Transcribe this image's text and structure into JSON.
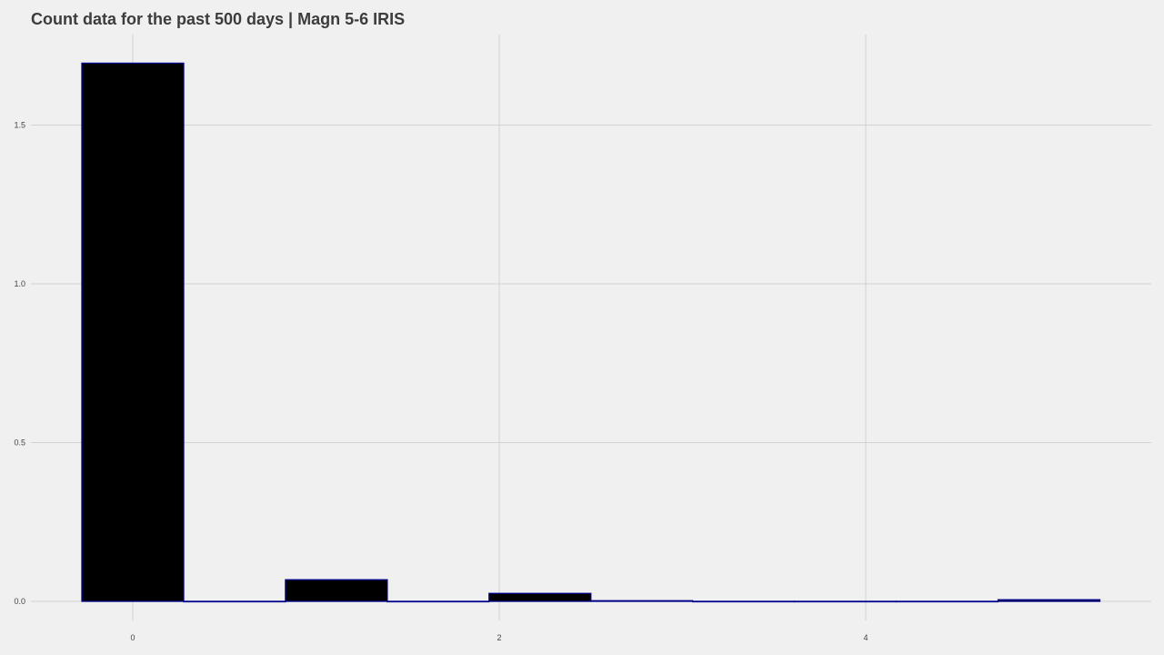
{
  "chart_data": {
    "type": "bar",
    "title": "Count data for the past 500 days | Magn 5-6 IRIS",
    "xlabel": "",
    "ylabel": "",
    "x": [
      0,
      0.5556,
      1.1111,
      1.6667,
      2.2222,
      2.7778,
      3.3333,
      3.8889,
      4.4444,
      5.0
    ],
    "values": [
      1.695,
      0.0,
      0.068,
      0.0,
      0.025,
      0.002,
      0.0,
      0.0,
      0.0,
      0.005
    ],
    "bar_width": 0.5556,
    "xlim": [
      -0.55,
      5.55
    ],
    "ylim": [
      0,
      1.78
    ],
    "x_ticks": [
      0,
      2,
      4
    ],
    "x_tick_labels": [
      "0",
      "2",
      "4"
    ],
    "y_ticks": [
      0,
      0.5,
      1.0,
      1.5
    ],
    "y_tick_labels": [
      "0.0",
      "0.5",
      "1.0",
      "1.5"
    ],
    "grid": true,
    "legend": "none",
    "colors": {
      "background": "#f0f0f0",
      "bar_fill": "#000000",
      "bar_outline": "#00008b",
      "grid": "#d2d2d2",
      "title": "#3c3c3c",
      "tick_text": "#444444"
    }
  }
}
